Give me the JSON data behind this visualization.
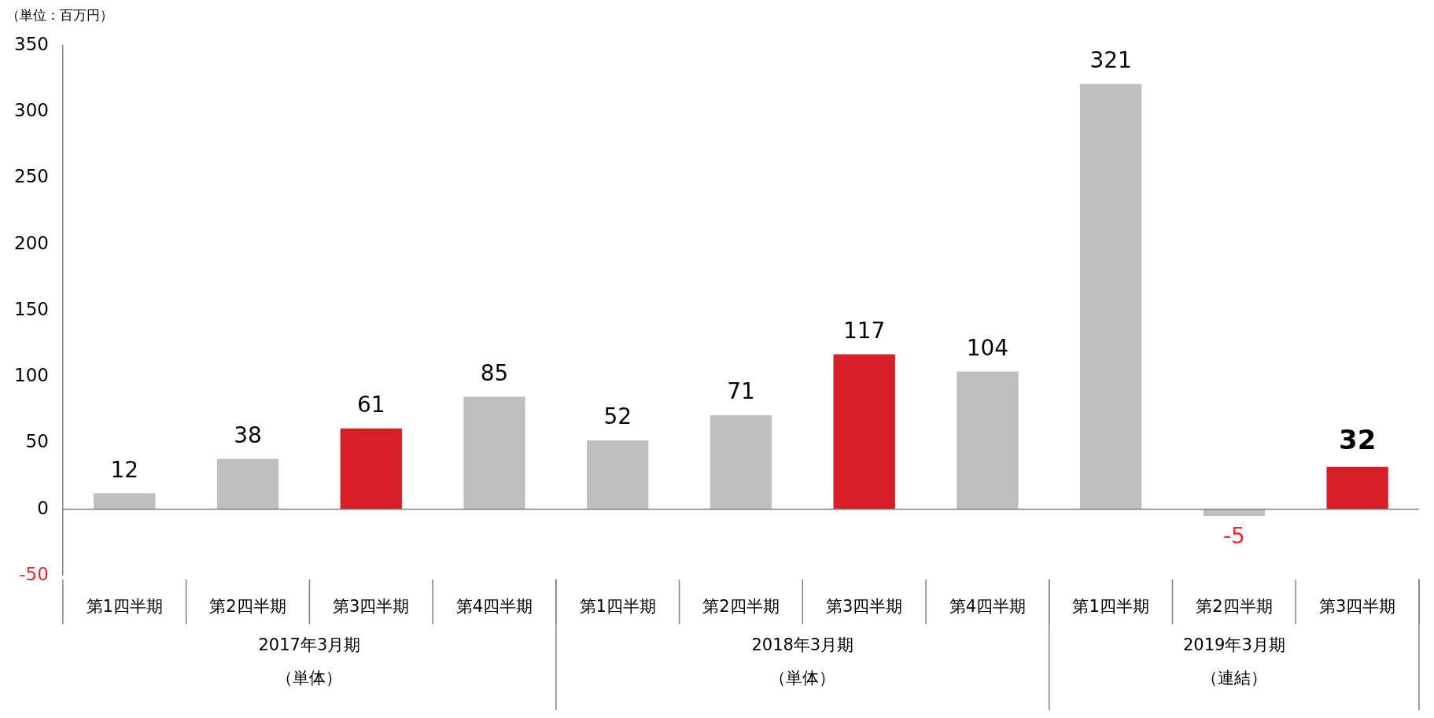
{
  "chart_data": {
    "type": "bar",
    "ylabel": "（単位：百万円）",
    "categories": [
      "第1四半期",
      "第2四半期",
      "第3四半期",
      "第4四半期",
      "第1四半期",
      "第2四半期",
      "第3四半期",
      "第4四半期",
      "第1四半期",
      "第2四半期",
      "第3四半期"
    ],
    "values": [
      12,
      38,
      61,
      85,
      52,
      71,
      117,
      104,
      321,
      -5,
      32
    ],
    "colors": [
      "#bfbfbf",
      "#bfbfbf",
      "#d71f27",
      "#bfbfbf",
      "#bfbfbf",
      "#bfbfbf",
      "#d71f27",
      "#bfbfbf",
      "#bfbfbf",
      "#bfbfbf",
      "#d71f27"
    ],
    "ylim": [
      -50,
      350
    ],
    "yticks": [
      -50,
      0,
      50,
      100,
      150,
      200,
      250,
      300,
      350
    ],
    "grid": false,
    "ref_lines": [
      {
        "axis": "y",
        "value": 0,
        "color": "#808080"
      }
    ],
    "legend": false,
    "data_labels": true,
    "annotations": [
      "2017年3月期",
      "（単体）",
      "2018年3月期",
      "（単体）",
      "2019年3月期",
      "（連結）"
    ]
  }
}
